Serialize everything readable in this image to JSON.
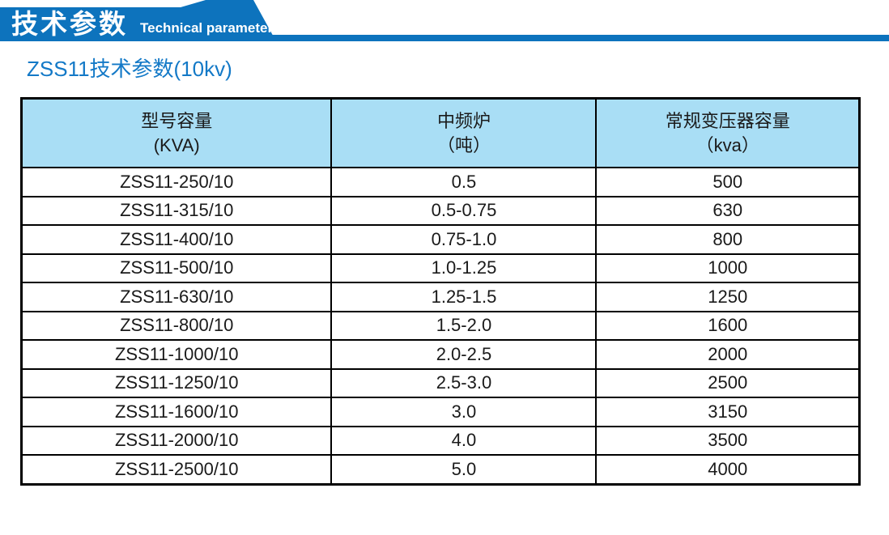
{
  "banner": {
    "title_zh": "技术参数",
    "title_en": "Technical parameter",
    "ribbon_color": "#0d73bd"
  },
  "section": {
    "title": "ZSS11技术参数(10kv)",
    "title_color": "#1379c7"
  },
  "table": {
    "header_bg": "#a9def5",
    "columns": [
      {
        "line1": "型号容量",
        "line2": "(KVA)"
      },
      {
        "line1": "中频炉",
        "line2": "（吨）"
      },
      {
        "line1": "常规变压器容量",
        "line2": "（kva）"
      }
    ],
    "rows": [
      [
        "ZSS11-250/10",
        "0.5",
        "500"
      ],
      [
        "ZSS11-315/10",
        "0.5-0.75",
        "630"
      ],
      [
        "ZSS11-400/10",
        "0.75-1.0",
        "800"
      ],
      [
        "ZSS11-500/10",
        "1.0-1.25",
        "1000"
      ],
      [
        "ZSS11-630/10",
        "1.25-1.5",
        "1250"
      ],
      [
        "ZSS11-800/10",
        "1.5-2.0",
        "1600"
      ],
      [
        "ZSS11-1000/10",
        "2.0-2.5",
        "2000"
      ],
      [
        "ZSS11-1250/10",
        "2.5-3.0",
        "2500"
      ],
      [
        "ZSS11-1600/10",
        "3.0",
        "3150"
      ],
      [
        "ZSS11-2000/10",
        "4.0",
        "3500"
      ],
      [
        "ZSS11-2500/10",
        "5.0",
        "4000"
      ]
    ]
  }
}
